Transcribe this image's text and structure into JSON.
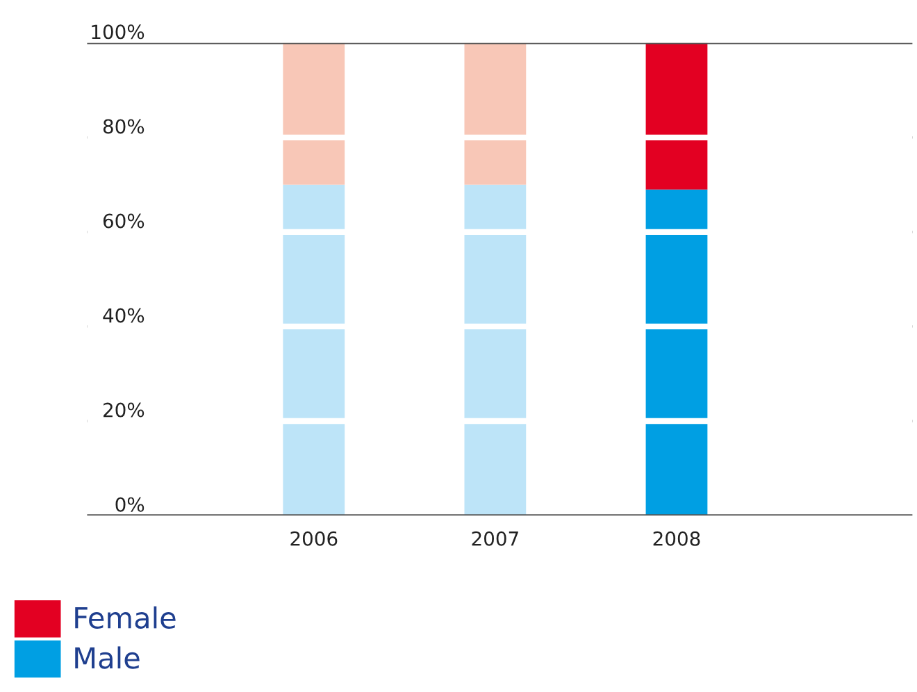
{
  "chart_data": {
    "type": "bar",
    "stacked": true,
    "categories": [
      "2006",
      "2007",
      "2008"
    ],
    "series": [
      {
        "name": "Male",
        "color": "#009fe3",
        "colors": [
          "#bde4f8",
          "#bde4f8",
          "#009fe3"
        ],
        "values": [
          70,
          70,
          69
        ]
      },
      {
        "name": "Female",
        "color": "#e30022",
        "colors": [
          "#f8c7b7",
          "#f8c7b7",
          "#e30022"
        ],
        "values": [
          30,
          30,
          31
        ]
      }
    ],
    "ylim": [
      0,
      100
    ],
    "yticks": [
      {
        "value": 0,
        "label": "0%"
      },
      {
        "value": 20,
        "label": "20%"
      },
      {
        "value": 40,
        "label": "40%"
      },
      {
        "value": 60,
        "label": "60%"
      },
      {
        "value": 80,
        "label": "80%"
      },
      {
        "value": 100,
        "label": "100%"
      }
    ],
    "grid": "y",
    "legend": "bottom left"
  }
}
